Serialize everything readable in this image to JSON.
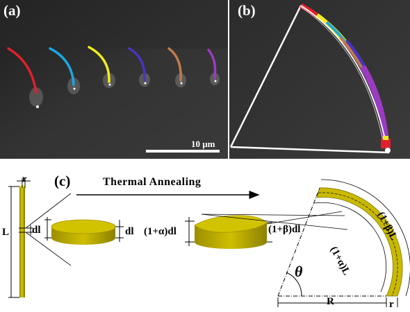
{
  "panel_a": {
    "label": "(a)",
    "scale_bar": "10 μm"
  },
  "panel_b": {
    "label": "(b)"
  },
  "panel_c": {
    "label": "(c)",
    "arrow_label": "Thermal Annealing",
    "rod": {
      "r": "r",
      "L": "L",
      "dl": "dl"
    },
    "disk_dl": "dl",
    "annealed_disk": {
      "left": "(1+α)dl",
      "right": "(1+β)dl"
    },
    "arc": {
      "theta": "θ",
      "R": "R",
      "r": "r",
      "inner": "(1+α)L",
      "outer": "(1+β)L"
    }
  },
  "colors": {
    "red": "#e0202e",
    "cyan": "#1aa7e0",
    "yellow": "#f3ec1a",
    "blue": "#4a35c0",
    "brown": "#c27a4e",
    "purple": "#9b3bc2",
    "rod": "#b3a600"
  }
}
